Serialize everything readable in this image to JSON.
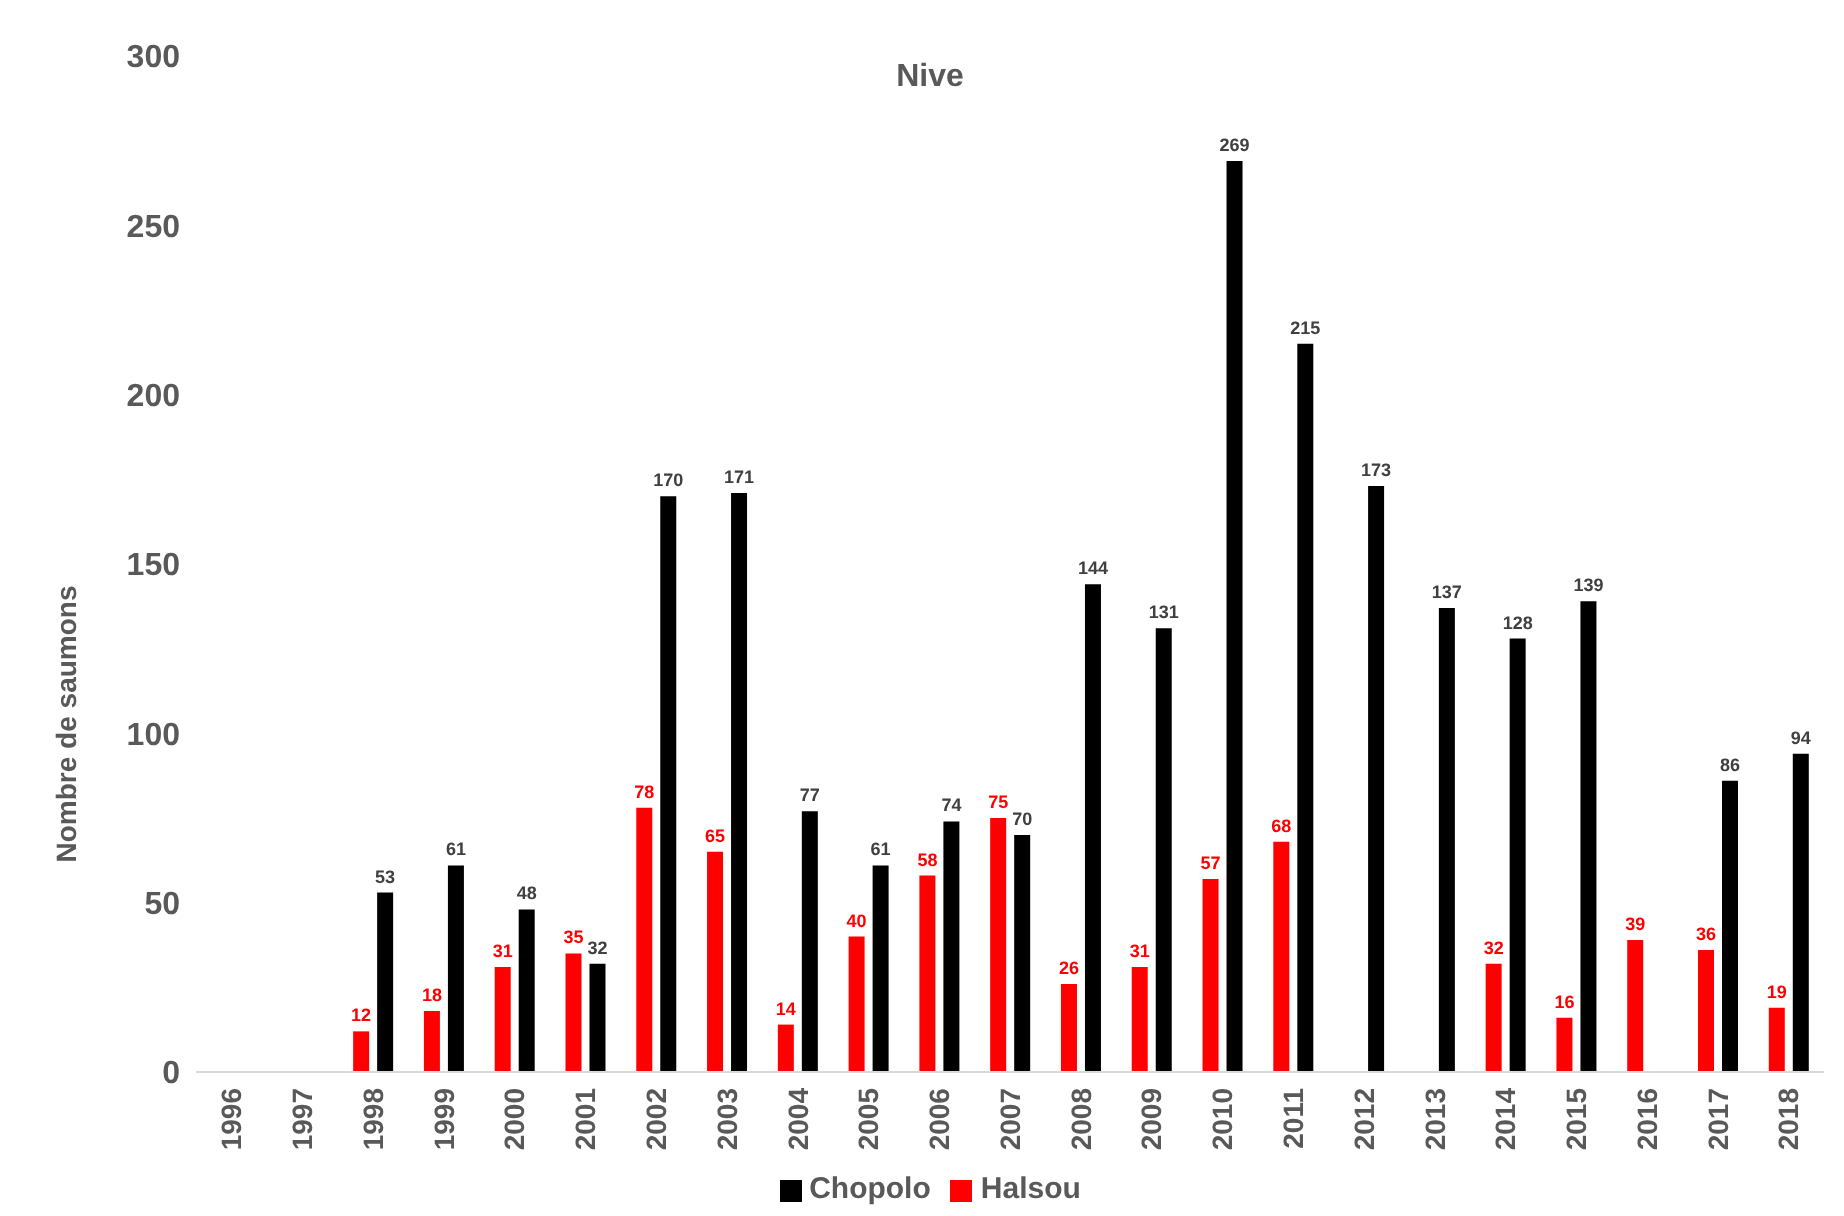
{
  "chart_data": {
    "type": "bar",
    "title": "Nive",
    "ylabel": "Nombre de saumons",
    "categories": [
      "1996",
      "1997",
      "1998",
      "1999",
      "2000",
      "2001",
      "2002",
      "2003",
      "2004",
      "2005",
      "2006",
      "2007",
      "2008",
      "2009",
      "2010",
      "2011",
      "2012",
      "2013",
      "2014",
      "2015",
      "2016",
      "2017",
      "2018"
    ],
    "series": [
      {
        "name": "Halsou",
        "color": "#ff0000",
        "values": [
          null,
          null,
          12,
          18,
          31,
          35,
          78,
          65,
          14,
          40,
          58,
          75,
          26,
          31,
          57,
          68,
          null,
          null,
          32,
          16,
          39,
          36,
          19
        ]
      },
      {
        "name": "Chopolo",
        "color": "#000000",
        "values": [
          null,
          null,
          53,
          61,
          48,
          32,
          170,
          171,
          77,
          61,
          74,
          70,
          144,
          131,
          269,
          215,
          173,
          137,
          128,
          139,
          null,
          86,
          94
        ]
      }
    ],
    "ylim": [
      0,
      300
    ],
    "yticks": [
      0,
      50,
      100,
      150,
      200,
      250,
      300
    ],
    "grid": false,
    "legend": "bottom",
    "data_labels": true
  }
}
